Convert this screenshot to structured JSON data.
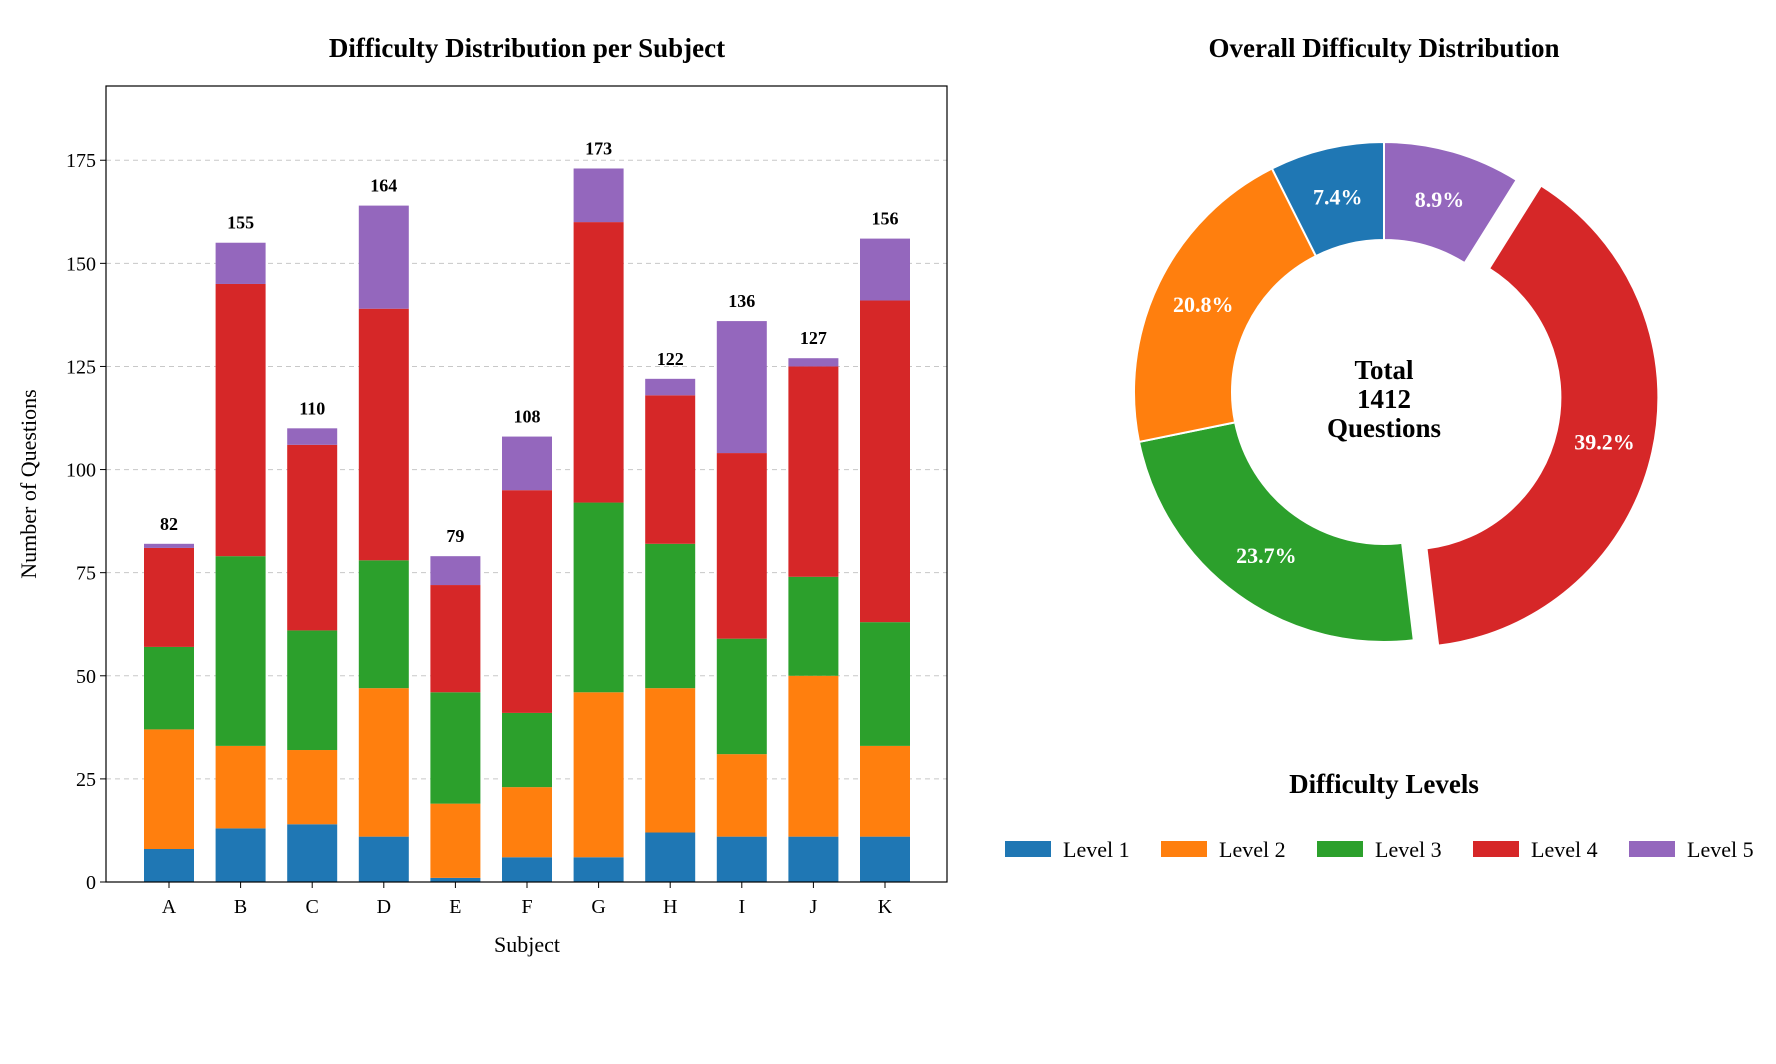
{
  "colors": {
    "level1": "#1f77b4",
    "level2": "#ff7f0e",
    "level3": "#2ca02c",
    "level4": "#d62728",
    "level5": "#9467bd"
  },
  "chart_data": [
    {
      "type": "bar",
      "stacked": true,
      "title": "Difficulty Distribution per Subject",
      "xlabel": "Subject",
      "ylabel": "Number of Questions",
      "ylim": [
        0,
        193
      ],
      "yticks": [
        0,
        25,
        50,
        75,
        100,
        125,
        150,
        175
      ],
      "grid": true,
      "categories": [
        "A",
        "B",
        "C",
        "D",
        "E",
        "F",
        "G",
        "H",
        "I",
        "J",
        "K"
      ],
      "series": [
        {
          "name": "Level 1",
          "values": [
            8,
            13,
            14,
            11,
            1,
            6,
            6,
            12,
            11,
            11,
            11
          ]
        },
        {
          "name": "Level 2",
          "values": [
            29,
            20,
            18,
            36,
            18,
            17,
            40,
            35,
            20,
            39,
            22
          ]
        },
        {
          "name": "Level 3",
          "values": [
            20,
            46,
            29,
            31,
            27,
            18,
            46,
            35,
            28,
            24,
            30
          ]
        },
        {
          "name": "Level 4",
          "values": [
            24,
            66,
            45,
            61,
            26,
            54,
            68,
            36,
            45,
            51,
            78
          ]
        },
        {
          "name": "Level 5",
          "values": [
            1,
            10,
            4,
            25,
            7,
            13,
            13,
            4,
            32,
            2,
            15
          ]
        }
      ],
      "totals": [
        82,
        155,
        110,
        164,
        79,
        108,
        173,
        122,
        136,
        127,
        156
      ]
    },
    {
      "type": "pie",
      "variant": "donut",
      "title": "Overall Difficulty Distribution",
      "center_label": [
        "Total",
        "1412",
        "Questions"
      ],
      "slices": [
        {
          "name": "Level 1",
          "percent": 7.4,
          "label": "7.4%",
          "exploded": false
        },
        {
          "name": "Level 5",
          "percent": 8.9,
          "label": "8.9%",
          "exploded": false
        },
        {
          "name": "Level 4",
          "percent": 39.2,
          "label": "39.2%",
          "exploded": true
        },
        {
          "name": "Level 3",
          "percent": 23.7,
          "label": "23.7%",
          "exploded": false
        },
        {
          "name": "Level 2",
          "percent": 20.8,
          "label": "20.8%",
          "exploded": false
        }
      ]
    }
  ],
  "legend": {
    "title": "Difficulty Levels",
    "items": [
      "Level 1",
      "Level 2",
      "Level 3",
      "Level 4",
      "Level 5"
    ]
  }
}
